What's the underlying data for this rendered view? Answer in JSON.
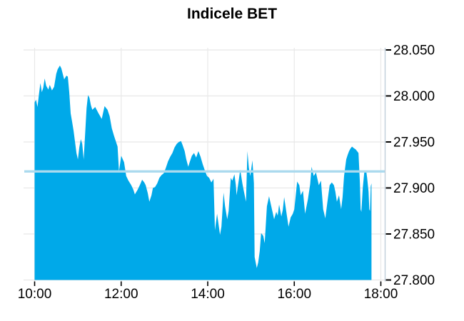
{
  "chart_data": {
    "type": "area",
    "title": "Indicele BET",
    "background": "#ffffff",
    "grid": true,
    "legend": false,
    "colors": {
      "fill": "#00a9e9",
      "reference_line": "#abdaee",
      "grid": "#e8e8e8",
      "axis_line": "#bfcdd9",
      "tick": "#000000",
      "label": "#000000",
      "title": "#000000"
    },
    "x_axis": {
      "unit": "minutes after 10:00",
      "range_minutes": [
        0,
        485
      ],
      "ticks": [
        {
          "t": 0,
          "label": "10:00"
        },
        {
          "t": 120,
          "label": "12:00"
        },
        {
          "t": 240,
          "label": "14:00"
        },
        {
          "t": 360,
          "label": "16:00"
        },
        {
          "t": 480,
          "label": "18:00"
        }
      ]
    },
    "y_axis": {
      "side": "right",
      "range": [
        27.8,
        28.05
      ],
      "ticks": [
        {
          "v": 27.8,
          "label": "27.800"
        },
        {
          "v": 27.85,
          "label": "27.850"
        },
        {
          "v": 27.9,
          "label": "27.900"
        },
        {
          "v": 27.95,
          "label": "27.950"
        },
        {
          "v": 28.0,
          "label": "28.000"
        },
        {
          "v": 28.05,
          "label": "28.050"
        }
      ]
    },
    "reference_line": {
      "value": 27.918
    },
    "points": [
      [
        0,
        27.993
      ],
      [
        2,
        27.996
      ],
      [
        4,
        27.988
      ],
      [
        6,
        28.002
      ],
      [
        8,
        28.014
      ],
      [
        10,
        28.004
      ],
      [
        12,
        28.009
      ],
      [
        14,
        28.019
      ],
      [
        16,
        28.011
      ],
      [
        19,
        28.007
      ],
      [
        21,
        28.012
      ],
      [
        24,
        28.006
      ],
      [
        27,
        28.01
      ],
      [
        30,
        28.024
      ],
      [
        32,
        28.029
      ],
      [
        35,
        28.033
      ],
      [
        37,
        28.03
      ],
      [
        39,
        28.024
      ],
      [
        41,
        28.018
      ],
      [
        44,
        28.022
      ],
      [
        46,
        28.021
      ],
      [
        48,
        28.004
      ],
      [
        50,
        27.981
      ],
      [
        52,
        27.972
      ],
      [
        54,
        27.962
      ],
      [
        56,
        27.95
      ],
      [
        58,
        27.938
      ],
      [
        60,
        27.931
      ],
      [
        62,
        27.944
      ],
      [
        64,
        27.953
      ],
      [
        66,
        27.948
      ],
      [
        68,
        27.931
      ],
      [
        70,
        27.958
      ],
      [
        72,
        27.987
      ],
      [
        74,
        28.001
      ],
      [
        76,
        27.998
      ],
      [
        78,
        27.99
      ],
      [
        80,
        27.985
      ],
      [
        84,
        27.988
      ],
      [
        88,
        27.982
      ],
      [
        93,
        27.975
      ],
      [
        97,
        27.989
      ],
      [
        101,
        27.985
      ],
      [
        104,
        27.978
      ],
      [
        107,
        27.965
      ],
      [
        110,
        27.957
      ],
      [
        112,
        27.952
      ],
      [
        115,
        27.945
      ],
      [
        117,
        27.918
      ],
      [
        120,
        27.935
      ],
      [
        124,
        27.928
      ],
      [
        127,
        27.913
      ],
      [
        130,
        27.908
      ],
      [
        134,
        27.903
      ],
      [
        137,
        27.898
      ],
      [
        139,
        27.893
      ],
      [
        142,
        27.897
      ],
      [
        144,
        27.9
      ],
      [
        147,
        27.905
      ],
      [
        149,
        27.909
      ],
      [
        152,
        27.906
      ],
      [
        154,
        27.903
      ],
      [
        157,
        27.894
      ],
      [
        159,
        27.885
      ],
      [
        162,
        27.892
      ],
      [
        164,
        27.9
      ],
      [
        167,
        27.901
      ],
      [
        170,
        27.905
      ],
      [
        173,
        27.911
      ],
      [
        176,
        27.914
      ],
      [
        179,
        27.916
      ],
      [
        182,
        27.922
      ],
      [
        185,
        27.929
      ],
      [
        188,
        27.934
      ],
      [
        191,
        27.938
      ],
      [
        194,
        27.944
      ],
      [
        197,
        27.948
      ],
      [
        200,
        27.95
      ],
      [
        203,
        27.951
      ],
      [
        205,
        27.947
      ],
      [
        208,
        27.94
      ],
      [
        210,
        27.932
      ],
      [
        213,
        27.923
      ],
      [
        215,
        27.928
      ],
      [
        218,
        27.935
      ],
      [
        221,
        27.938
      ],
      [
        224,
        27.933
      ],
      [
        227,
        27.94
      ],
      [
        230,
        27.934
      ],
      [
        233,
        27.926
      ],
      [
        236,
        27.919
      ],
      [
        239,
        27.913
      ],
      [
        242,
        27.911
      ],
      [
        245,
        27.906
      ],
      [
        248,
        27.91
      ],
      [
        250,
        27.854
      ],
      [
        253,
        27.872
      ],
      [
        257,
        27.849
      ],
      [
        259,
        27.858
      ],
      [
        262,
        27.895
      ],
      [
        264,
        27.88
      ],
      [
        267,
        27.866
      ],
      [
        269,
        27.875
      ],
      [
        272,
        27.911
      ],
      [
        274,
        27.908
      ],
      [
        277,
        27.915
      ],
      [
        279,
        27.903
      ],
      [
        280,
        27.892
      ],
      [
        283,
        27.908
      ],
      [
        285,
        27.92
      ],
      [
        288,
        27.905
      ],
      [
        290,
        27.897
      ],
      [
        293,
        27.885
      ],
      [
        295,
        27.94
      ],
      [
        297,
        27.922
      ],
      [
        299,
        27.913
      ],
      [
        302,
        27.93
      ],
      [
        304,
        27.905
      ],
      [
        305,
        27.825
      ],
      [
        308,
        27.813
      ],
      [
        310,
        27.819
      ],
      [
        312,
        27.831
      ],
      [
        314,
        27.851
      ],
      [
        317,
        27.848
      ],
      [
        319,
        27.84
      ],
      [
        322,
        27.88
      ],
      [
        325,
        27.891
      ],
      [
        327,
        27.884
      ],
      [
        329,
        27.877
      ],
      [
        332,
        27.866
      ],
      [
        335,
        27.874
      ],
      [
        337,
        27.87
      ],
      [
        339,
        27.882
      ],
      [
        342,
        27.869
      ],
      [
        344,
        27.876
      ],
      [
        346,
        27.89
      ],
      [
        349,
        27.874
      ],
      [
        352,
        27.858
      ],
      [
        355,
        27.868
      ],
      [
        358,
        27.872
      ],
      [
        360,
        27.877
      ],
      [
        362,
        27.892
      ],
      [
        364,
        27.907
      ],
      [
        367,
        27.903
      ],
      [
        369,
        27.892
      ],
      [
        372,
        27.897
      ],
      [
        375,
        27.872
      ],
      [
        377,
        27.88
      ],
      [
        379,
        27.888
      ],
      [
        382,
        27.904
      ],
      [
        384,
        27.923
      ],
      [
        387,
        27.913
      ],
      [
        390,
        27.917
      ],
      [
        392,
        27.91
      ],
      [
        394,
        27.903
      ],
      [
        397,
        27.908
      ],
      [
        400,
        27.877
      ],
      [
        403,
        27.867
      ],
      [
        406,
        27.885
      ],
      [
        409,
        27.903
      ],
      [
        412,
        27.906
      ],
      [
        415,
        27.903
      ],
      [
        417,
        27.896
      ],
      [
        419,
        27.885
      ],
      [
        422,
        27.892
      ],
      [
        425,
        27.877
      ],
      [
        427,
        27.89
      ],
      [
        429,
        27.913
      ],
      [
        432,
        27.931
      ],
      [
        434,
        27.936
      ],
      [
        436,
        27.94
      ],
      [
        438,
        27.943
      ],
      [
        440,
        27.945
      ],
      [
        443,
        27.943
      ],
      [
        445,
        27.942
      ],
      [
        447,
        27.94
      ],
      [
        449,
        27.938
      ],
      [
        451,
        27.905
      ],
      [
        452,
        27.877
      ],
      [
        453,
        27.874
      ],
      [
        455,
        27.9
      ],
      [
        457,
        27.917
      ],
      [
        459,
        27.919
      ],
      [
        460,
        27.917
      ],
      [
        461,
        27.911
      ],
      [
        463,
        27.896
      ],
      [
        464,
        27.877
      ],
      [
        465,
        27.875
      ],
      [
        466,
        27.902
      ],
      [
        467,
        27.905
      ]
    ]
  }
}
